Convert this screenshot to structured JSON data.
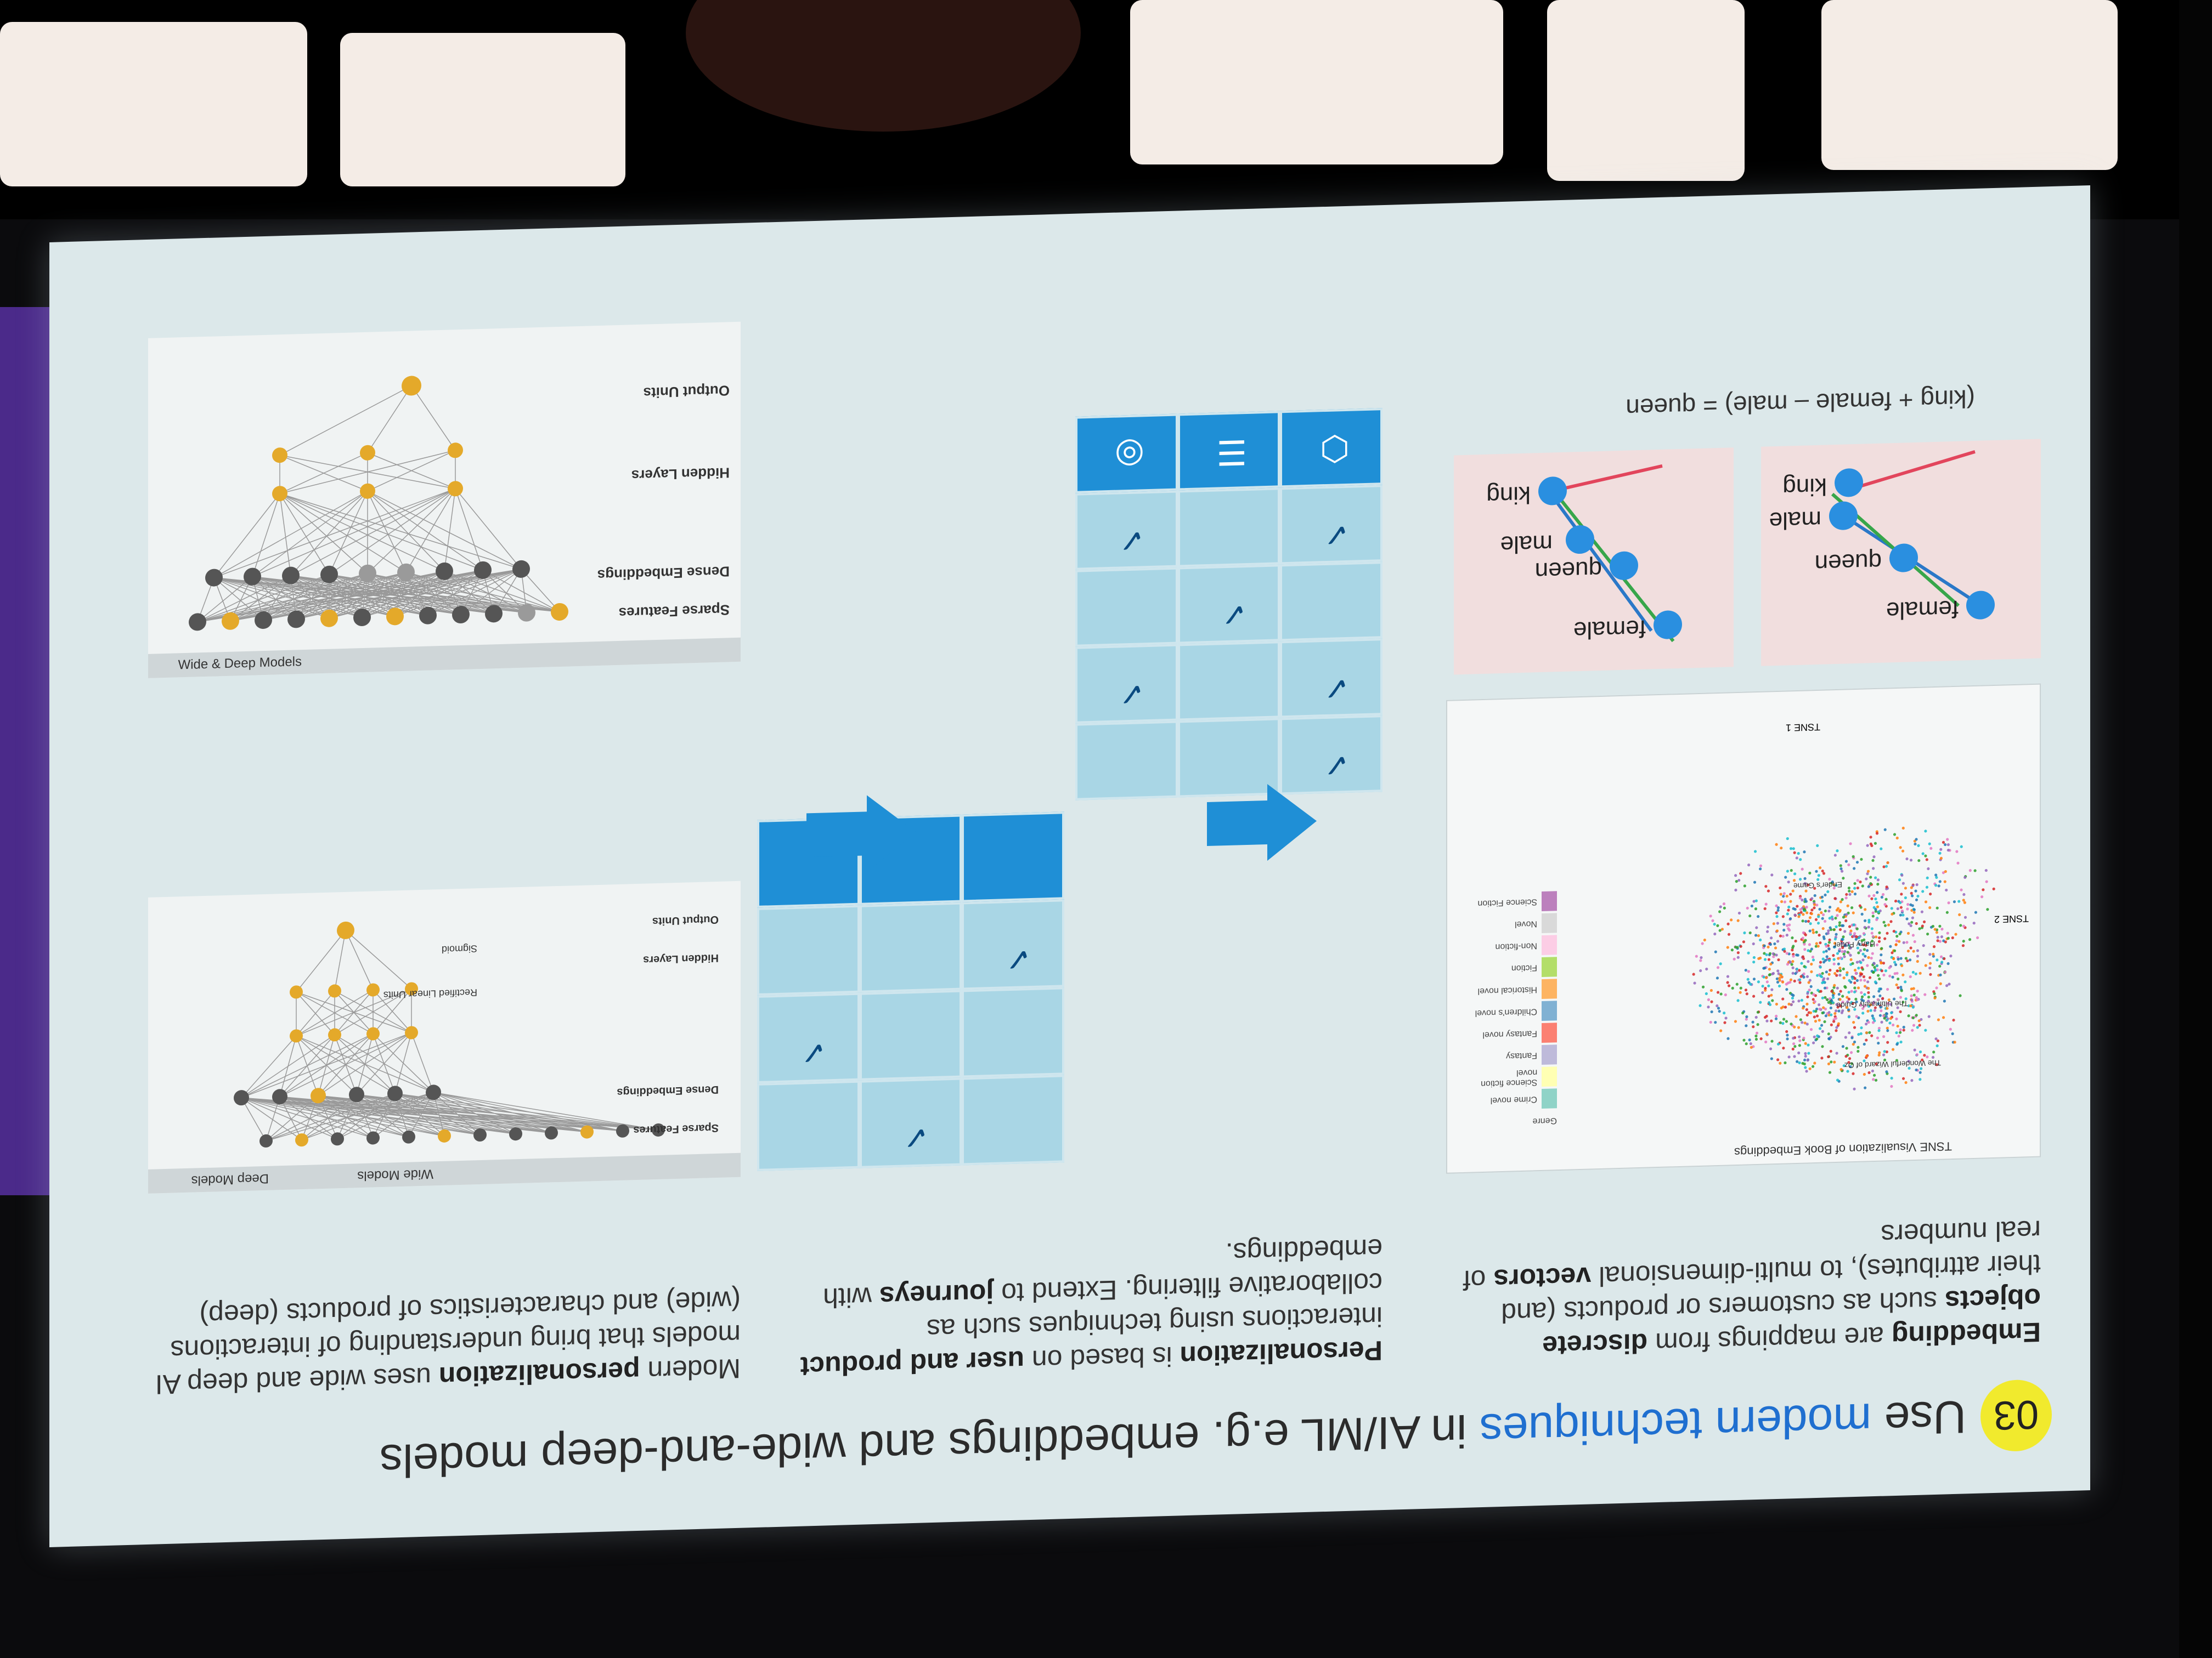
{
  "slide": {
    "number": "03",
    "title_pre": "Use ",
    "title_highlight": "modern techniques",
    "title_post": " in AI/ML e.g. embeddings and wide-and-deep models",
    "columns": [
      {
        "bold1": "Embedding",
        "t1": " are mappings from ",
        "bold2": "discrete objects",
        "t2": " such as customers or products (and their attributes), to multi-dimensional ",
        "bold3": "vectors",
        "t3": " of real numbers"
      },
      {
        "bold1": "Personalization",
        "t1": " is based on ",
        "bold2": "user and product",
        "t2": " interactions using techniques such as collaborative filtering. Extend to ",
        "bold3": "journeys",
        "t3": " with embeddings."
      },
      {
        "t0": "Modern ",
        "bold1": "personalization",
        "t1": " uses wide and deep AI models that bring understanding of interactions (wide) and characteristics of products (deep)"
      }
    ]
  },
  "tsne": {
    "title": "TSNE Visualization of Book Embeddings",
    "legend_title": "Genre",
    "xlabel": "TSNE 1",
    "ylabel": "TSNE 2",
    "genres": [
      {
        "name": "Crime novel",
        "color": "#8fd3c7"
      },
      {
        "name": "Science fiction novel",
        "color": "#ffffb3"
      },
      {
        "name": "Fantasy",
        "color": "#bebada"
      },
      {
        "name": "Fantasy novel",
        "color": "#fb8072"
      },
      {
        "name": "Children's novel",
        "color": "#80b1d3"
      },
      {
        "name": "Historical novel",
        "color": "#fdb462"
      },
      {
        "name": "Fiction",
        "color": "#b3de69"
      },
      {
        "name": "Non-fiction",
        "color": "#fccde5"
      },
      {
        "name": "Novel",
        "color": "#d9d9d9"
      },
      {
        "name": "Science Fiction",
        "color": "#bc80bd"
      }
    ],
    "annotations": [
      "The Wonderful Wizard of Oz",
      "The Ultimately Guide",
      "Harry Potter",
      "Ender's Game"
    ],
    "cluster_colors": [
      "#2ca02c",
      "#ff7f0e",
      "#1f77b4",
      "#9467bd",
      "#e377c2",
      "#d62728",
      "#17becf"
    ]
  },
  "analogy": {
    "words_a": [
      "female",
      "queen",
      "male",
      "king"
    ],
    "words_b": [
      "female",
      "queen",
      "male",
      "king"
    ],
    "equation": "(king + female – male) = queen",
    "arrow_colors": {
      "blue": "#2a78c8",
      "green": "#37a64a",
      "red": "#e2455c"
    }
  },
  "grids": {
    "check_mark": "✓",
    "icon_names": [
      "shoe-icon",
      "stack-icon",
      "robot-icon"
    ]
  },
  "wide_deep": {
    "top": {
      "labels": [
        "Output Units",
        "Hidden Layers",
        "Dense Embeddings",
        "Sparse Features"
      ],
      "unit_labels": [
        "Sigmoid",
        "Rectified Linear Units"
      ],
      "sections": [
        "Wide Models",
        "Deep Models"
      ]
    },
    "bottom": {
      "labels": [
        "Output Units",
        "Hidden Layers",
        "Dense Embeddings",
        "Sparse Features"
      ],
      "caption": "Wide & Deep Models"
    }
  }
}
